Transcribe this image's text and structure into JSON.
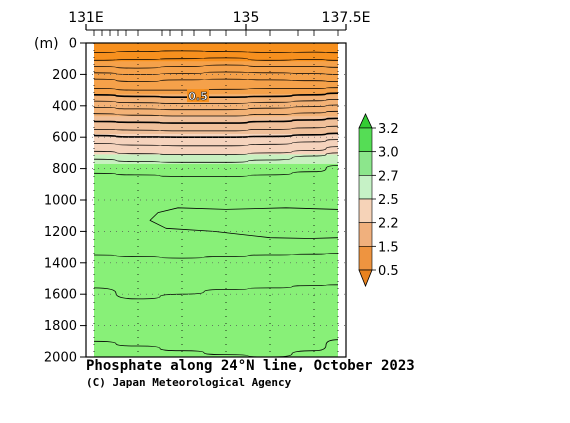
{
  "chart_data": {
    "type": "heatmap",
    "title": "Phosphate along 24°N line, October 2023",
    "credit": "(C) Japan Meteorological Agency",
    "ylabel": "(m)",
    "x_ticks": [
      "131E",
      "135",
      "137.5E"
    ],
    "x_tick_values": [
      131,
      135,
      137.5
    ],
    "xlim": [
      131,
      137.5
    ],
    "ylim": [
      0,
      2000
    ],
    "y_ticks": [
      0,
      200,
      400,
      600,
      800,
      1000,
      1200,
      1400,
      1600,
      1800,
      2000
    ],
    "y_tick_labels": [
      "0",
      "200",
      "400",
      "600",
      "800",
      "1000",
      "1200",
      "1400",
      "1600",
      "1800",
      "2000"
    ],
    "data_xlim": [
      131.2,
      137.3
    ],
    "station_longitudes": [
      131.2,
      132.3,
      133.4,
      134.5,
      135.6,
      136.7,
      137.3
    ],
    "extra_top_ticks": [
      131.4,
      131.6,
      131.8,
      132.0,
      132.9,
      133.1,
      133.7,
      134.1,
      135.0,
      136.3
    ],
    "contour_label": "0.5",
    "legend": {
      "labels": [
        "3.2",
        "3.0",
        "2.7",
        "2.5",
        "2.2",
        "1.5",
        "0.5"
      ],
      "bins": [
        {
          "color": "#33cc33",
          "range": "> 3.2"
        },
        {
          "color": "#55dd55",
          "range": "3.0 - 3.2"
        },
        {
          "color": "#8ce68c",
          "range": "2.7 - 3.0"
        },
        {
          "color": "#c6f2c6",
          "range": "2.5 - 2.7"
        },
        {
          "color": "#f6d3b8",
          "range": "2.2 - 2.5"
        },
        {
          "color": "#f0b07d",
          "range": "1.5 - 2.2"
        },
        {
          "color": "#ee9440",
          "range": "0.5 - 1.5"
        },
        {
          "color": "#e8821e",
          "range": "< 0.5"
        }
      ]
    },
    "layers": [
      {
        "depth_top": 0,
        "depth_bottom": 120,
        "value": "< 0.5",
        "color": "#f7901e"
      },
      {
        "depth_top": 120,
        "depth_bottom": 330,
        "value": "0.5 - 1.5",
        "color": "#f5a14a"
      },
      {
        "depth_top": 330,
        "depth_bottom": 470,
        "value": "1.5 - 2.2",
        "color": "#f3b276"
      },
      {
        "depth_top": 470,
        "depth_bottom": 580,
        "value": "1.5 - 2.2",
        "color": "#f0c09a"
      },
      {
        "depth_top": 580,
        "depth_bottom": 710,
        "value": "2.2 - 2.5",
        "color": "#f5d3bd"
      },
      {
        "depth_top": 710,
        "depth_bottom": 770,
        "value": "2.5 - 2.7",
        "color": "#c8f0c0"
      },
      {
        "depth_top": 770,
        "depth_bottom": 2000,
        "value": "3.0 - 3.2",
        "color": "#88f078"
      }
    ],
    "contours": [
      {
        "depths": [
          60,
          55,
          50,
          55,
          60,
          58,
          62
        ],
        "bold": false
      },
      {
        "depths": [
          110,
          105,
          100,
          95,
          110,
          105,
          110
        ],
        "bold": false
      },
      {
        "depths": [
          150,
          160,
          150,
          140,
          150,
          150,
          155
        ],
        "bold": false
      },
      {
        "depths": [
          190,
          200,
          195,
          185,
          190,
          195,
          200
        ],
        "bold": false
      },
      {
        "depths": [
          230,
          245,
          235,
          230,
          235,
          240,
          245
        ],
        "bold": false
      },
      {
        "depths": [
          290,
          300,
          300,
          295,
          290,
          290,
          285
        ],
        "bold": false
      },
      {
        "depths": [
          330,
          340,
          345,
          345,
          340,
          330,
          320
        ],
        "bold": true
      },
      {
        "depths": [
          370,
          380,
          385,
          385,
          378,
          368,
          360
        ],
        "bold": false
      },
      {
        "depths": [
          410,
          420,
          425,
          425,
          415,
          405,
          395
        ],
        "bold": false
      },
      {
        "depths": [
          450,
          460,
          465,
          465,
          455,
          445,
          435
        ],
        "bold": false
      },
      {
        "depths": [
          500,
          505,
          510,
          510,
          500,
          490,
          480
        ],
        "bold": true
      },
      {
        "depths": [
          550,
          555,
          560,
          560,
          550,
          540,
          530
        ],
        "bold": false
      },
      {
        "depths": [
          590,
          598,
          600,
          600,
          595,
          585,
          575
        ],
        "bold": true
      },
      {
        "depths": [
          640,
          650,
          655,
          655,
          645,
          630,
          615
        ],
        "bold": false
      },
      {
        "depths": [
          690,
          705,
          710,
          710,
          700,
          685,
          660
        ],
        "bold": false
      },
      {
        "depths": [
          740,
          755,
          760,
          760,
          745,
          720,
          700
        ],
        "bold": false
      },
      {
        "depths": [
          830,
          840,
          850,
          850,
          840,
          820,
          780
        ],
        "bold": false
      },
      {
        "depths": [
          1350,
          1360,
          1370,
          1360,
          1350,
          1345,
          1340
        ],
        "bold": false
      },
      {
        "depths": [
          1560,
          1630,
          1600,
          1570,
          1560,
          1545,
          1540
        ],
        "bold": false
      },
      {
        "depths": [
          1900,
          1930,
          1960,
          1985,
          2000,
          1960,
          1890
        ],
        "bold": false
      }
    ],
    "closed_contour": {
      "points": [
        [
          137.3,
          1060
        ],
        [
          136.0,
          1050
        ],
        [
          134.5,
          1060
        ],
        [
          133.3,
          1050
        ],
        [
          132.8,
          1080
        ],
        [
          132.6,
          1130
        ],
        [
          133.0,
          1180
        ],
        [
          134.2,
          1200
        ],
        [
          135.6,
          1240
        ],
        [
          136.6,
          1245
        ],
        [
          137.3,
          1240
        ]
      ]
    }
  }
}
